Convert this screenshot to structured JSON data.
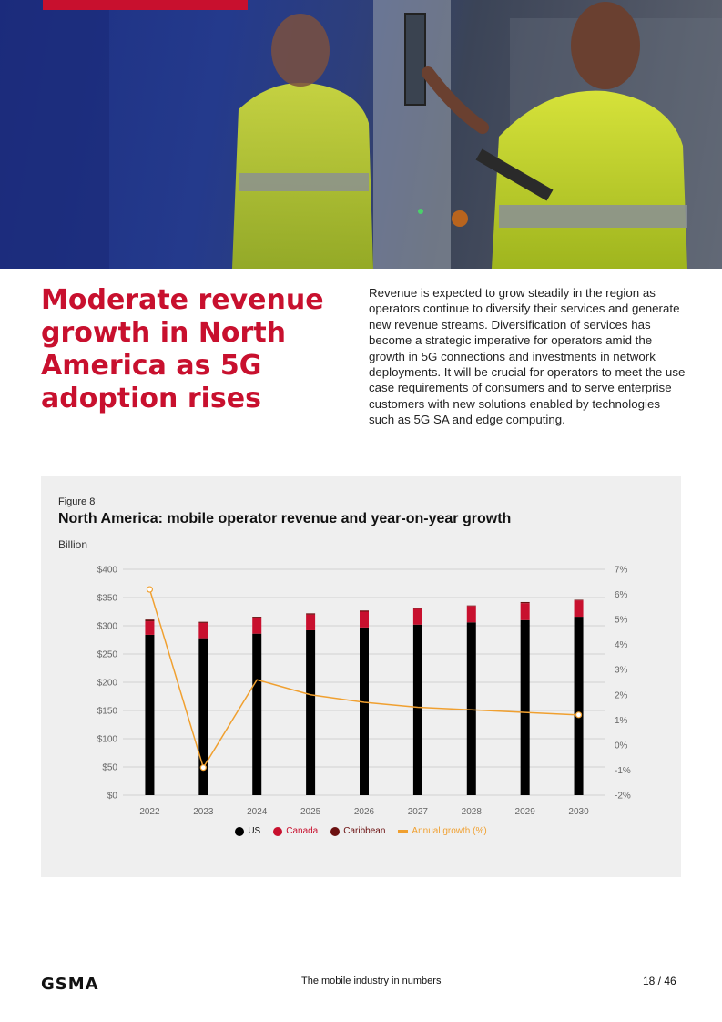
{
  "headline": "Moderate revenue growth in North America as 5G adoption rises",
  "intro": "Revenue is expected to grow steadily in the region as operators continue to diversify their services and generate new revenue streams. Diversification of services has become a strategic imperative for operators amid the growth in 5G connections and investments in network deployments. It will be crucial for operators to meet the use case requirements of consumers and to serve enterprise customers with new solutions enabled by technologies such as 5G SA and edge computing.",
  "figure": {
    "label": "Figure 8",
    "title": "North America: mobile operator revenue and year-on-year growth",
    "unit": "Billion"
  },
  "colors": {
    "brand_red": "#c8102e",
    "us": "#000000",
    "canada": "#c8102e",
    "caribbean": "#6b1010",
    "growth": "#f0a030"
  },
  "chart_data": {
    "type": "bar",
    "stacked": true,
    "categories": [
      "2022",
      "2023",
      "2024",
      "2025",
      "2026",
      "2027",
      "2028",
      "2029",
      "2030"
    ],
    "series": [
      {
        "name": "US",
        "values": [
          284,
          278,
          286,
          292,
          297,
          302,
          306,
          310,
          316
        ]
      },
      {
        "name": "Canada",
        "values": [
          24,
          27,
          27,
          28,
          28,
          28,
          29,
          30,
          29
        ]
      },
      {
        "name": "Caribbean",
        "values": [
          3,
          2,
          3,
          2,
          2,
          2,
          1,
          2,
          1
        ]
      }
    ],
    "line": {
      "name": "Annual growth (%)",
      "values": [
        6.2,
        -0.9,
        2.6,
        2.0,
        1.7,
        1.5,
        1.4,
        1.3,
        1.2
      ],
      "axis": "right"
    },
    "ylim": [
      0,
      400
    ],
    "y_ticks": [
      "$0",
      "$50",
      "$100",
      "$150",
      "$200",
      "$250",
      "$300",
      "$350",
      "$400"
    ],
    "y2lim": [
      -2,
      7
    ],
    "y2_ticks": [
      "-2%",
      "-1%",
      "0%",
      "1%",
      "2%",
      "3%",
      "4%",
      "5%",
      "6%",
      "7%"
    ],
    "ylabel": "Billion",
    "legend": [
      "US",
      "Canada",
      "Caribbean",
      "Annual growth (%)"
    ],
    "legend_position": "bottom",
    "grid": true
  },
  "footer": {
    "logo": "GSMA",
    "center": "The mobile industry in numbers",
    "page": "18 / 46"
  }
}
